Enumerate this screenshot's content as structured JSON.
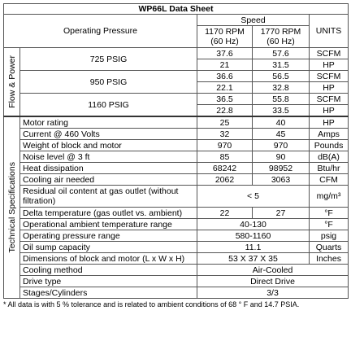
{
  "title": "WP66L Data Sheet",
  "header": {
    "operating_pressure": "Operating Pressure",
    "speed": "Speed",
    "speed_1": "1170 RPM (60 Hz)",
    "speed_2": "1770 RPM (60 Hz)",
    "units": "UNITS"
  },
  "flow": {
    "label": "Flow & Power",
    "groups": [
      {
        "pressure": "725 PSIG",
        "rows": [
          {
            "values": [
              "37.6",
              "57.6"
            ],
            "unit": "SCFM"
          },
          {
            "values": [
              "21",
              "31.5"
            ],
            "unit": "HP"
          }
        ]
      },
      {
        "pressure": "950 PSIG",
        "rows": [
          {
            "values": [
              "36.6",
              "56.5"
            ],
            "unit": "SCFM"
          },
          {
            "values": [
              "22.1",
              "32.8"
            ],
            "unit": "HP"
          }
        ]
      },
      {
        "pressure": "1160 PSIG",
        "rows": [
          {
            "values": [
              "36.5",
              "55.8"
            ],
            "unit": "SCFM"
          },
          {
            "values": [
              "22.8",
              "33.5"
            ],
            "unit": "HP"
          }
        ]
      }
    ]
  },
  "specs": {
    "label": "Technical Specifications",
    "rows": [
      {
        "label": "Motor rating",
        "values": [
          "25",
          "40"
        ],
        "unit": "HP"
      },
      {
        "label": "Current @ 460 Volts",
        "values": [
          "32",
          "45"
        ],
        "unit": "Amps"
      },
      {
        "label": "Weight of block and motor",
        "values": [
          "970",
          "970"
        ],
        "unit": "Pounds"
      },
      {
        "label": "Noise level @ 3 ft",
        "values": [
          "85",
          "90"
        ],
        "unit": "dB(A)"
      },
      {
        "label": "Heat dissipation",
        "values": [
          "68242",
          "98952"
        ],
        "unit": "Btu/hr"
      },
      {
        "label": "Cooling air needed",
        "values": [
          "2062",
          "3063"
        ],
        "unit": "CFM"
      },
      {
        "label": "Residual oil content at gas outlet (without filtration)",
        "values": [
          "< 5"
        ],
        "unit": "mg/m³"
      },
      {
        "label": "Delta temperature (gas outlet vs. ambient)",
        "values": [
          "22",
          "27"
        ],
        "unit": "°F"
      },
      {
        "label": "Operational ambient temperature range",
        "values": [
          "40-130"
        ],
        "unit": "°F"
      },
      {
        "label": "Operating pressure range",
        "values": [
          "580-1160"
        ],
        "unit": "psig"
      },
      {
        "label": "Oil sump capacity",
        "values": [
          "11.1"
        ],
        "unit": "Quarts"
      },
      {
        "label": "Dimensions of block and motor (L x W x H)",
        "values": [
          "53 X 37 X 35"
        ],
        "unit": "Inches"
      },
      {
        "label": "Cooling method",
        "values": [
          "Air-Cooled"
        ]
      },
      {
        "label": "Drive type",
        "values": [
          "Direct Drive"
        ]
      },
      {
        "label": "Stages/Cylinders",
        "values": [
          "3/3"
        ]
      }
    ]
  },
  "footnote": "* All data is with 5 % tolerance and is related to ambient conditions of 68 ° F and 14.7 PSIA."
}
